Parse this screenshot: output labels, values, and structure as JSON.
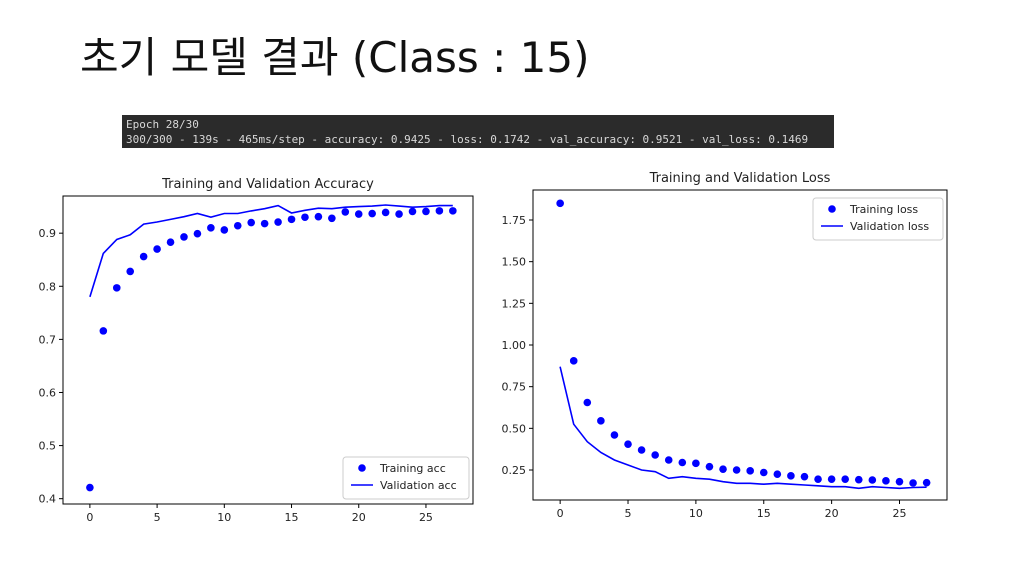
{
  "slide": {
    "title": "초기 모델 결과 (Class : 15)"
  },
  "console": {
    "line1": "Epoch 28/30",
    "line2": "300/300 - 139s - 465ms/step - accuracy: 0.9425 - loss: 0.1742 - val_accuracy: 0.9521 - val_loss: 0.1469"
  },
  "colors": {
    "series": "#0000ff",
    "axis": "#000000",
    "console_bg": "#2b2b2b"
  },
  "chart_data": [
    {
      "type": "line",
      "title": "Training and Validation Accuracy",
      "xlabel": "",
      "ylabel": "",
      "x": [
        0,
        1,
        2,
        3,
        4,
        5,
        6,
        7,
        8,
        9,
        10,
        11,
        12,
        13,
        14,
        15,
        16,
        17,
        18,
        19,
        20,
        21,
        22,
        23,
        24,
        25,
        26,
        27
      ],
      "xlim": [
        -2,
        28.5
      ],
      "ylim": [
        0.39,
        0.97
      ],
      "xticks": [
        0,
        5,
        10,
        15,
        20,
        25
      ],
      "yticks": [
        0.4,
        0.5,
        0.6,
        0.7,
        0.8,
        0.9
      ],
      "ytick_labels": [
        "0.4",
        "0.5",
        "0.6",
        "0.7",
        "0.8",
        "0.9"
      ],
      "grid": false,
      "legend": "bottom-right",
      "series": [
        {
          "name": "Training acc",
          "style": "scatter",
          "values": [
            0.421,
            0.716,
            0.797,
            0.828,
            0.856,
            0.87,
            0.883,
            0.893,
            0.899,
            0.91,
            0.906,
            0.914,
            0.92,
            0.918,
            0.921,
            0.926,
            0.93,
            0.931,
            0.928,
            0.94,
            0.936,
            0.937,
            0.939,
            0.936,
            0.941,
            0.941,
            0.942,
            0.942
          ]
        },
        {
          "name": "Validation acc",
          "style": "line",
          "values": [
            0.78,
            0.862,
            0.888,
            0.897,
            0.917,
            0.921,
            0.926,
            0.931,
            0.937,
            0.93,
            0.937,
            0.937,
            0.942,
            0.946,
            0.952,
            0.938,
            0.943,
            0.947,
            0.946,
            0.949,
            0.95,
            0.951,
            0.953,
            0.951,
            0.949,
            0.95,
            0.952,
            0.952
          ]
        }
      ]
    },
    {
      "type": "line",
      "title": "Training and Validation Loss",
      "xlabel": "",
      "ylabel": "",
      "x": [
        0,
        1,
        2,
        3,
        4,
        5,
        6,
        7,
        8,
        9,
        10,
        11,
        12,
        13,
        14,
        15,
        16,
        17,
        18,
        19,
        20,
        21,
        22,
        23,
        24,
        25,
        26,
        27
      ],
      "xlim": [
        -2,
        28.5
      ],
      "ylim": [
        0.07,
        1.93
      ],
      "xticks": [
        0,
        5,
        10,
        15,
        20,
        25
      ],
      "yticks": [
        0.25,
        0.5,
        0.75,
        1.0,
        1.25,
        1.5,
        1.75
      ],
      "ytick_labels": [
        "0.25",
        "0.50",
        "0.75",
        "1.00",
        "1.25",
        "1.50",
        "1.75"
      ],
      "grid": false,
      "legend": "top-right",
      "series": [
        {
          "name": "Training loss",
          "style": "scatter",
          "values": [
            1.85,
            0.905,
            0.655,
            0.545,
            0.46,
            0.405,
            0.37,
            0.34,
            0.31,
            0.295,
            0.29,
            0.27,
            0.255,
            0.25,
            0.245,
            0.235,
            0.225,
            0.215,
            0.21,
            0.195,
            0.195,
            0.195,
            0.192,
            0.19,
            0.185,
            0.18,
            0.172,
            0.174
          ]
        },
        {
          "name": "Validation loss",
          "style": "line",
          "values": [
            0.87,
            0.525,
            0.42,
            0.355,
            0.31,
            0.28,
            0.25,
            0.24,
            0.2,
            0.21,
            0.2,
            0.195,
            0.18,
            0.17,
            0.17,
            0.165,
            0.17,
            0.165,
            0.16,
            0.155,
            0.15,
            0.15,
            0.14,
            0.15,
            0.145,
            0.14,
            0.145,
            0.147
          ]
        }
      ]
    }
  ]
}
